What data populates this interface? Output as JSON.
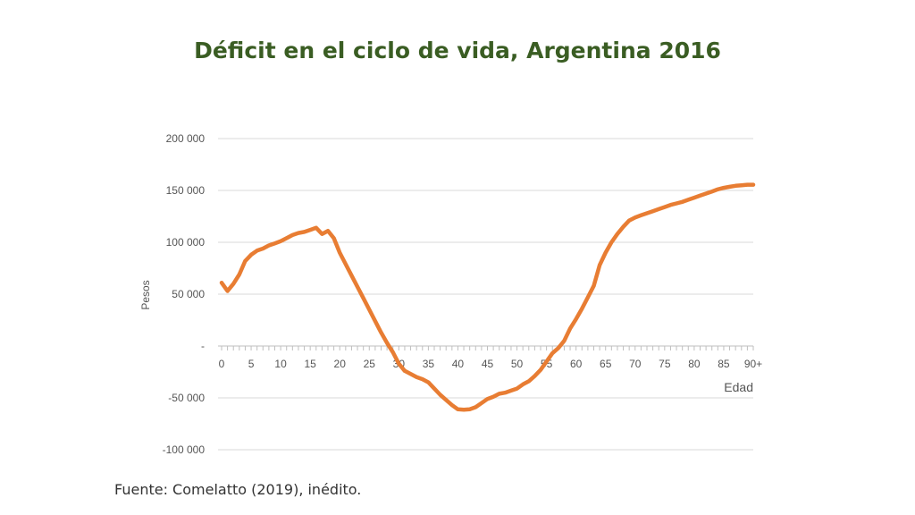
{
  "colors": {
    "title": "#3a5d23",
    "line": "#e87d33",
    "grid": "#d9d9d9"
  },
  "source": "Fuente: Comelatto (2019), inédito.",
  "chart_data": {
    "type": "line",
    "title": "Déficit en el ciclo de vida, Argentina 2016",
    "xlabel": "Edad",
    "ylabel": "Pesos",
    "ylim": [
      -100000,
      200000
    ],
    "yticks": [
      200000,
      150000,
      100000,
      50000,
      0,
      -50000,
      -100000
    ],
    "ytick_labels": [
      "200 000",
      "150 000",
      "100 000",
      "50 000",
      "-",
      "-50 000",
      "-100 000"
    ],
    "xticks": [
      0,
      5,
      10,
      15,
      20,
      25,
      30,
      35,
      40,
      45,
      50,
      55,
      60,
      65,
      70,
      75,
      80,
      85,
      90
    ],
    "xtick_labels": [
      "0",
      "5",
      "10",
      "15",
      "20",
      "25",
      "30",
      "35",
      "40",
      "45",
      "50",
      "55",
      "60",
      "65",
      "70",
      "75",
      "80",
      "85",
      "90+"
    ],
    "xlim": [
      0,
      90
    ],
    "grid": true,
    "series": [
      {
        "x": [
          0,
          1,
          2,
          3,
          4,
          5,
          6,
          7,
          8,
          9,
          10,
          11,
          12,
          13,
          14,
          15,
          16,
          17,
          18,
          19,
          20,
          21,
          22,
          23,
          24,
          25,
          26,
          27,
          28,
          29,
          30,
          31,
          32,
          33,
          34,
          35,
          36,
          37,
          38,
          39,
          40,
          41,
          42,
          43,
          44,
          45,
          46,
          47,
          48,
          49,
          50,
          51,
          52,
          53,
          54,
          55,
          56,
          57,
          58,
          59,
          60,
          61,
          62,
          63,
          64,
          65,
          66,
          67,
          68,
          69,
          70,
          71,
          72,
          73,
          74,
          75,
          76,
          77,
          78,
          79,
          80,
          81,
          82,
          83,
          84,
          85,
          86,
          87,
          88,
          89,
          90
        ],
        "values": [
          61000,
          53000,
          60000,
          69000,
          82000,
          88000,
          92000,
          94000,
          97000,
          99000,
          101000,
          104000,
          107000,
          109000,
          110000,
          112000,
          114000,
          108000,
          111000,
          104000,
          90000,
          79000,
          68000,
          57000,
          46000,
          35000,
          24000,
          13000,
          3000,
          -6000,
          -17000,
          -24000,
          -27000,
          -30000,
          -32000,
          -35000,
          -41000,
          -47000,
          -52000,
          -57000,
          -61000,
          -61500,
          -61000,
          -59000,
          -55000,
          -51000,
          -49000,
          -46000,
          -45000,
          -43000,
          -41000,
          -37000,
          -34000,
          -29000,
          -23000,
          -15000,
          -7000,
          -2000,
          5000,
          17000,
          26000,
          36000,
          47000,
          58000,
          78000,
          90000,
          100000,
          108000,
          115000,
          121000,
          124000,
          126000,
          128000,
          130000,
          132000,
          134000,
          136000,
          137500,
          139000,
          141000,
          143000,
          145000,
          147000,
          149000,
          151000,
          152500,
          153500,
          154500,
          155000,
          155500,
          155500
        ]
      }
    ]
  }
}
